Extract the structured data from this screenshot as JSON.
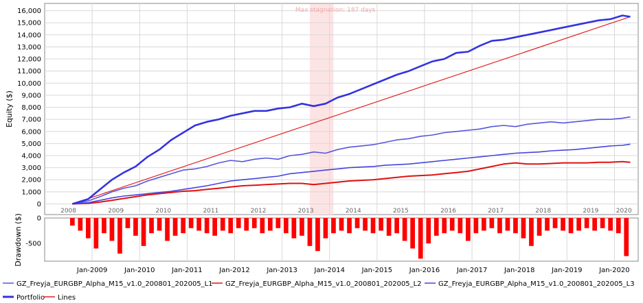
{
  "colors": {
    "portfolio": "#3333dd",
    "line1": "#5555dd",
    "line2": "#e01010",
    "line3": "#4444dd",
    "trend": "#e02020",
    "drawdown": "#ff0000",
    "stagnation": "#fde4e4",
    "grid": "#d8d8d8"
  },
  "chart_data": [
    {
      "type": "line",
      "title": "",
      "ylabel": "Equity ($)",
      "ylim": [
        -200,
        16600
      ],
      "yticks": [
        0,
        1000,
        2000,
        3000,
        4000,
        5000,
        6000,
        7000,
        8000,
        9000,
        10000,
        11000,
        12000,
        13000,
        14000,
        15000,
        16000
      ],
      "ytick_labels": [
        "0",
        "1,000",
        "2,000",
        "3,000",
        "4,000",
        "5,000",
        "6,000",
        "7,000",
        "8,000",
        "9,000",
        "10,000",
        "11,000",
        "12,000",
        "13,000",
        "14,000",
        "15,000",
        "16,000"
      ],
      "year_labels": [
        "2008",
        "2009",
        "2010",
        "2011",
        "2012",
        "2013",
        "2014",
        "2015",
        "2016",
        "2017",
        "2018",
        "2019",
        "2020"
      ],
      "annotation": "Max stagnation: 187 days",
      "stagnation_period": [
        "2013-08",
        "2014-02"
      ],
      "series": [
        {
          "name": "Portfolio",
          "x": [
            "2008-08",
            "2008-12",
            "2009-03",
            "2009-06",
            "2009-09",
            "2009-12",
            "2010-03",
            "2010-06",
            "2010-09",
            "2010-12",
            "2011-03",
            "2011-06",
            "2011-09",
            "2011-12",
            "2012-03",
            "2012-06",
            "2012-09",
            "2012-12",
            "2013-03",
            "2013-06",
            "2013-09",
            "2013-12",
            "2014-03",
            "2014-06",
            "2014-09",
            "2014-12",
            "2015-03",
            "2015-06",
            "2015-09",
            "2015-12",
            "2016-03",
            "2016-06",
            "2016-09",
            "2016-12",
            "2017-03",
            "2017-06",
            "2017-09",
            "2017-12",
            "2018-03",
            "2018-06",
            "2018-09",
            "2018-12",
            "2019-03",
            "2019-06",
            "2019-09",
            "2019-12",
            "2020-03",
            "2020-05"
          ],
          "values": [
            0,
            400,
            1200,
            2000,
            2600,
            3100,
            3900,
            4500,
            5300,
            5900,
            6500,
            6800,
            7000,
            7300,
            7500,
            7700,
            7700,
            7900,
            8000,
            8300,
            8100,
            8300,
            8800,
            9100,
            9500,
            9900,
            10300,
            10700,
            11000,
            11400,
            11800,
            12000,
            12500,
            12600,
            13100,
            13500,
            13600,
            13800,
            14000,
            14200,
            14400,
            14600,
            14800,
            15000,
            15200,
            15300,
            15600,
            15500
          ]
        },
        {
          "name": "GZ_Freyja_EURGBP_Alpha_M15_v1.0_200801_202005_L1",
          "x": [
            "2008-08",
            "2008-12",
            "2009-03",
            "2009-06",
            "2009-09",
            "2009-12",
            "2010-03",
            "2010-06",
            "2010-09",
            "2010-12",
            "2011-03",
            "2011-06",
            "2011-09",
            "2011-12",
            "2012-03",
            "2012-06",
            "2012-09",
            "2012-12",
            "2013-03",
            "2013-06",
            "2013-09",
            "2013-12",
            "2014-03",
            "2014-06",
            "2014-09",
            "2014-12",
            "2015-03",
            "2015-06",
            "2015-09",
            "2015-12",
            "2016-03",
            "2016-06",
            "2016-09",
            "2016-12",
            "2017-03",
            "2017-06",
            "2017-09",
            "2017-12",
            "2018-03",
            "2018-06",
            "2018-09",
            "2018-12",
            "2019-03",
            "2019-06",
            "2019-09",
            "2019-12",
            "2020-03",
            "2020-05"
          ],
          "values": [
            0,
            250,
            600,
            1000,
            1300,
            1500,
            1900,
            2200,
            2500,
            2800,
            2900,
            3100,
            3400,
            3600,
            3500,
            3700,
            3800,
            3700,
            4000,
            4100,
            4300,
            4200,
            4500,
            4700,
            4800,
            4900,
            5100,
            5300,
            5400,
            5600,
            5700,
            5900,
            6000,
            6100,
            6200,
            6400,
            6500,
            6400,
            6600,
            6700,
            6800,
            6700,
            6800,
            6900,
            7000,
            7000,
            7100,
            7200
          ]
        },
        {
          "name": "GZ_Freyja_EURGBP_Alpha_M15_v1.0_200801_202005_L2",
          "x": [
            "2008-08",
            "2008-12",
            "2009-03",
            "2009-06",
            "2009-09",
            "2009-12",
            "2010-03",
            "2010-06",
            "2010-09",
            "2010-12",
            "2011-03",
            "2011-06",
            "2011-09",
            "2011-12",
            "2012-03",
            "2012-06",
            "2012-09",
            "2012-12",
            "2013-03",
            "2013-06",
            "2013-09",
            "2013-12",
            "2014-03",
            "2014-06",
            "2014-09",
            "2014-12",
            "2015-03",
            "2015-06",
            "2015-09",
            "2015-12",
            "2016-03",
            "2016-06",
            "2016-09",
            "2016-12",
            "2017-03",
            "2017-06",
            "2017-09",
            "2017-12",
            "2018-03",
            "2018-06",
            "2018-09",
            "2018-12",
            "2019-03",
            "2019-06",
            "2019-09",
            "2019-12",
            "2020-03",
            "2020-05"
          ],
          "values": [
            0,
            50,
            150,
            300,
            450,
            600,
            750,
            850,
            950,
            1050,
            1100,
            1200,
            1300,
            1400,
            1500,
            1550,
            1600,
            1650,
            1700,
            1700,
            1600,
            1700,
            1800,
            1900,
            1950,
            2000,
            2100,
            2200,
            2300,
            2350,
            2400,
            2500,
            2600,
            2700,
            2900,
            3100,
            3300,
            3400,
            3300,
            3300,
            3350,
            3400,
            3400,
            3400,
            3450,
            3450,
            3500,
            3450
          ]
        },
        {
          "name": "GZ_Freyja_EURGBP_Alpha_M15_v1.0_200801_202005_L3",
          "x": [
            "2008-08",
            "2008-12",
            "2009-03",
            "2009-06",
            "2009-09",
            "2009-12",
            "2010-03",
            "2010-06",
            "2010-09",
            "2010-12",
            "2011-03",
            "2011-06",
            "2011-09",
            "2011-12",
            "2012-03",
            "2012-06",
            "2012-09",
            "2012-12",
            "2013-03",
            "2013-06",
            "2013-09",
            "2013-12",
            "2014-03",
            "2014-06",
            "2014-09",
            "2014-12",
            "2015-03",
            "2015-06",
            "2015-09",
            "2015-12",
            "2016-03",
            "2016-06",
            "2016-09",
            "2016-12",
            "2017-03",
            "2017-06",
            "2017-09",
            "2017-12",
            "2018-03",
            "2018-06",
            "2018-09",
            "2018-12",
            "2019-03",
            "2019-06",
            "2019-09",
            "2019-12",
            "2020-03",
            "2020-05"
          ],
          "values": [
            0,
            100,
            300,
            500,
            650,
            750,
            850,
            950,
            1050,
            1200,
            1350,
            1500,
            1700,
            1900,
            2000,
            2100,
            2200,
            2300,
            2500,
            2600,
            2700,
            2800,
            2900,
            3000,
            3050,
            3100,
            3200,
            3250,
            3300,
            3400,
            3500,
            3600,
            3700,
            3800,
            3900,
            4000,
            4100,
            4200,
            4250,
            4300,
            4400,
            4450,
            4500,
            4600,
            4700,
            4800,
            4850,
            4950
          ]
        },
        {
          "name": "Lines",
          "x": [
            "2008-08",
            "2020-05"
          ],
          "values": [
            0,
            15500
          ]
        }
      ]
    },
    {
      "type": "bar",
      "title": "",
      "ylabel": "Drawdown ($)",
      "ylim": [
        -850,
        0
      ],
      "yticks": [
        0,
        -500
      ],
      "ytick_labels": [
        "0",
        "-500"
      ],
      "xtick_labels": [
        "Jan-2009",
        "Jan-2010",
        "Jan-2011",
        "Jan-2012",
        "Jan-2013",
        "Jan-2014",
        "Jan-2015",
        "Jan-2016",
        "Jan-2017",
        "Jan-2018",
        "Jan-2019",
        "Jan-2020"
      ],
      "x": [
        "2008-08",
        "2008-10",
        "2008-12",
        "2009-02",
        "2009-04",
        "2009-06",
        "2009-08",
        "2009-10",
        "2009-12",
        "2010-02",
        "2010-04",
        "2010-06",
        "2010-08",
        "2010-10",
        "2010-12",
        "2011-02",
        "2011-04",
        "2011-06",
        "2011-08",
        "2011-10",
        "2011-12",
        "2012-02",
        "2012-04",
        "2012-06",
        "2012-08",
        "2012-10",
        "2012-12",
        "2013-02",
        "2013-04",
        "2013-06",
        "2013-08",
        "2013-10",
        "2013-12",
        "2014-02",
        "2014-04",
        "2014-06",
        "2014-08",
        "2014-10",
        "2014-12",
        "2015-02",
        "2015-04",
        "2015-06",
        "2015-08",
        "2015-10",
        "2015-12",
        "2016-02",
        "2016-04",
        "2016-06",
        "2016-08",
        "2016-10",
        "2016-12",
        "2017-02",
        "2017-04",
        "2017-06",
        "2017-08",
        "2017-10",
        "2017-12",
        "2018-02",
        "2018-04",
        "2018-06",
        "2018-08",
        "2018-10",
        "2018-12",
        "2019-02",
        "2019-04",
        "2019-06",
        "2019-08",
        "2019-10",
        "2019-12",
        "2020-02",
        "2020-04"
      ],
      "values": [
        -150,
        -250,
        -400,
        -600,
        -300,
        -450,
        -700,
        -200,
        -350,
        -550,
        -300,
        -250,
        -450,
        -350,
        -300,
        -200,
        -250,
        -300,
        -350,
        -250,
        -300,
        -200,
        -250,
        -200,
        -300,
        -250,
        -200,
        -300,
        -400,
        -350,
        -550,
        -650,
        -400,
        -300,
        -250,
        -300,
        -200,
        -250,
        -300,
        -250,
        -350,
        -300,
        -450,
        -600,
        -800,
        -500,
        -350,
        -300,
        -250,
        -300,
        -450,
        -300,
        -250,
        -200,
        -300,
        -250,
        -300,
        -400,
        -550,
        -350,
        -250,
        -200,
        -250,
        -300,
        -250,
        -200,
        -250,
        -200,
        -250,
        -300,
        -750
      ]
    }
  ],
  "legend": [
    {
      "label": "GZ_Freyja_EURGBP_Alpha_M15_v1.0_200801_202005_L1"
    },
    {
      "label": "GZ_Freyja_EURGBP_Alpha_M15_v1.0_200801_202005_L2"
    },
    {
      "label": "GZ_Freyja_EURGBP_Alpha_M15_v1.0_200801_202005_L3"
    },
    {
      "label": "Portfolio"
    },
    {
      "label": "Lines"
    }
  ]
}
